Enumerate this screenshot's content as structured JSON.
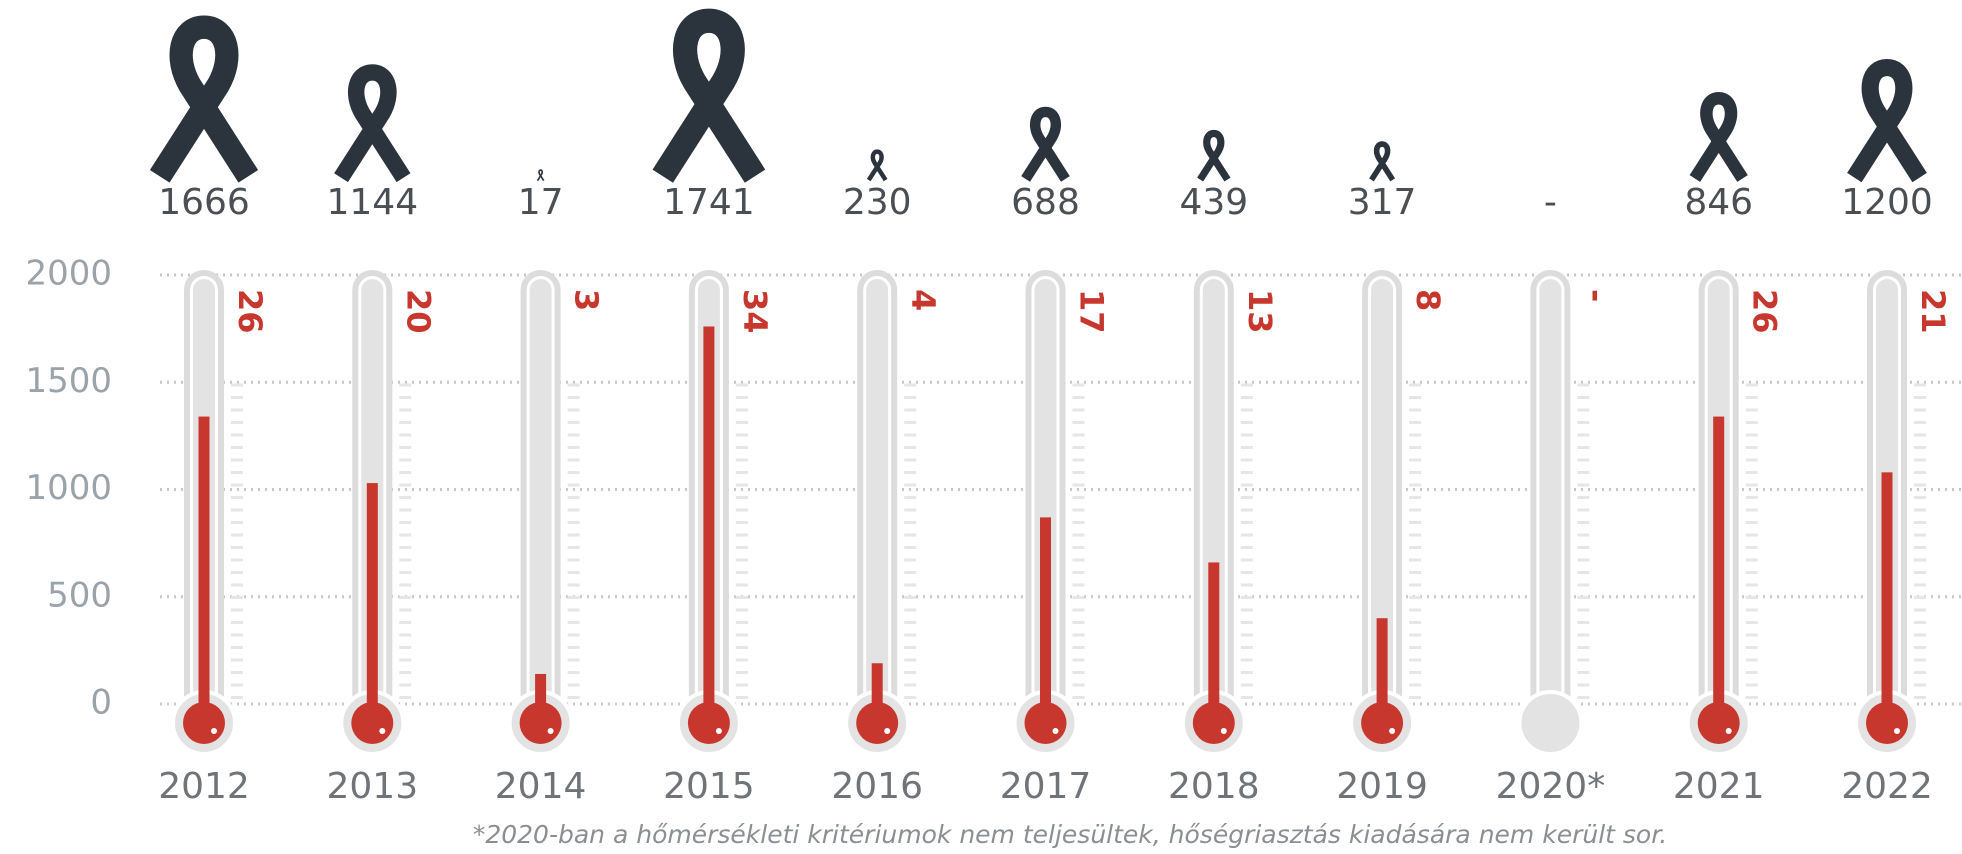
{
  "chart_data": {
    "type": "thermometer",
    "categories": [
      "2012",
      "2013",
      "2014",
      "2015",
      "2016",
      "2017",
      "2018",
      "2019",
      "2020*",
      "2021",
      "2022"
    ],
    "deaths": {
      "values": [
        1666,
        1144,
        17,
        1741,
        230,
        688,
        439,
        317,
        null,
        846,
        1200
      ],
      "value_labels": [
        "1666",
        "1144",
        "17",
        "1741",
        "230",
        "688",
        "439",
        "317",
        "-",
        "846",
        "1200"
      ],
      "color": "#2b343c"
    },
    "days": {
      "values": [
        26,
        20,
        3,
        34,
        4,
        17,
        13,
        8,
        null,
        26,
        21
      ],
      "value_labels": [
        "26",
        "20",
        "3",
        "34",
        "4",
        "17",
        "13",
        "8",
        "-",
        "26",
        "21"
      ],
      "color": "#c8372d"
    },
    "values": [
      1340,
      1030,
      140,
      1760,
      190,
      870,
      660,
      400,
      0,
      1340,
      1080
    ],
    "color": "#c8372d",
    "ylim": [
      0,
      2000
    ],
    "yticks": [
      0,
      500,
      1000,
      1500,
      2000
    ],
    "grid": true,
    "footnote": "*2020-ban a hőmérsékleti kritériumok nem teljesültek, hőségriasztás kiadására nem került sor."
  }
}
